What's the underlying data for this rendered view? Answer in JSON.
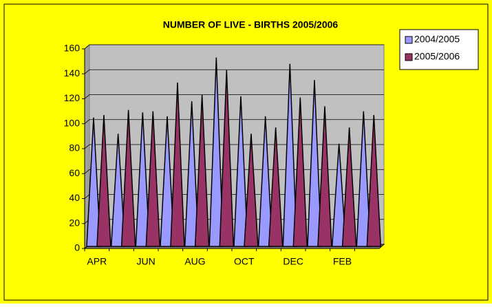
{
  "chart_data": {
    "type": "cone",
    "title": "NUMBER OF LIVE - BIRTHS 2005/2006",
    "categories": [
      "APR",
      null,
      "JUN",
      null,
      "AUG",
      null,
      "OCT",
      null,
      "DEC",
      null,
      "FEB",
      null
    ],
    "series": [
      {
        "name": "2004/2005",
        "color": "#9999ff",
        "values": [
          105,
          92,
          109,
          106,
          118,
          153,
          122,
          106,
          148,
          135,
          84,
          110
        ]
      },
      {
        "name": "2005/2006",
        "color": "#993366",
        "values": [
          107,
          111,
          110,
          133,
          123,
          143,
          92,
          97,
          121,
          114,
          97,
          107
        ]
      }
    ],
    "ylim": [
      0,
      160
    ],
    "yticks": [
      0,
      20,
      40,
      60,
      80,
      100,
      120,
      140,
      160
    ],
    "grid": true,
    "legend": "right"
  }
}
